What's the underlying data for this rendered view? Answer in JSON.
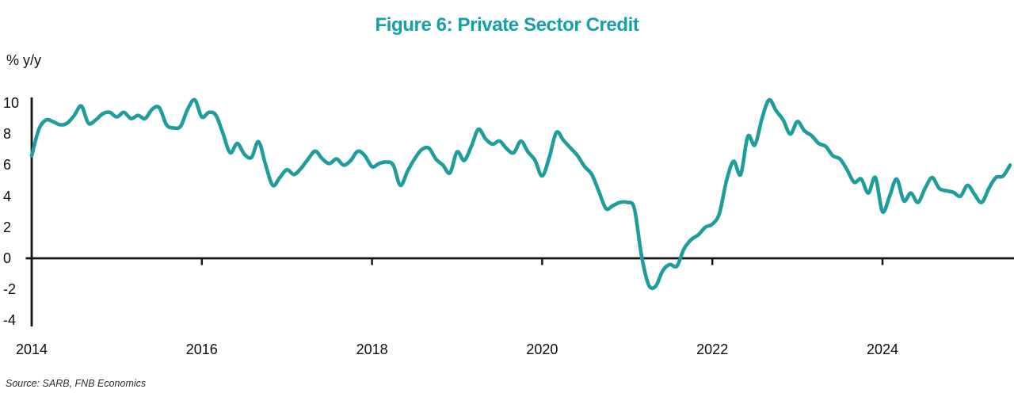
{
  "figure": {
    "title": "Figure 6: Private Sector Credit",
    "title_color": "#14a0a8",
    "unit_label": "% y/y",
    "source": "Source: SARB, FNB Economics"
  },
  "chart_data": {
    "type": "line",
    "title": "Figure 6: Private Sector Credit",
    "ylabel": "% y/y",
    "series_name": "private-sector-credit-growth",
    "frequency": "monthly",
    "start_year": 2014,
    "start_month": 1,
    "values": [
      6.6,
      8.3,
      8.9,
      8.8,
      8.6,
      8.7,
      9.2,
      9.8,
      8.7,
      8.9,
      9.3,
      9.4,
      9.1,
      9.4,
      9.0,
      9.2,
      9.0,
      9.6,
      9.7,
      8.6,
      8.4,
      8.5,
      9.6,
      10.2,
      9.1,
      9.4,
      9.2,
      8.0,
      6.8,
      7.4,
      6.7,
      6.5,
      7.5,
      6.0,
      4.7,
      5.2,
      5.7,
      5.4,
      5.8,
      6.4,
      6.9,
      6.4,
      6.1,
      6.4,
      6.0,
      6.3,
      6.9,
      6.6,
      5.9,
      6.1,
      6.2,
      6.0,
      4.7,
      5.6,
      6.4,
      7.0,
      7.1,
      6.4,
      6.0,
      5.5,
      6.85,
      6.3,
      7.2,
      8.3,
      7.7,
      7.35,
      7.55,
      7.05,
      6.8,
      7.55,
      6.85,
      6.3,
      5.3,
      6.5,
      8.1,
      7.6,
      7.1,
      6.6,
      5.9,
      5.4,
      4.3,
      3.2,
      3.4,
      3.6,
      3.6,
      3.2,
      0.2,
      -1.7,
      -1.8,
      -0.8,
      -0.4,
      -0.5,
      0.6,
      1.2,
      1.5,
      2.0,
      2.2,
      2.9,
      5.0,
      6.25,
      5.4,
      7.85,
      7.3,
      9.0,
      10.2,
      9.5,
      8.9,
      8.0,
      8.8,
      8.2,
      7.9,
      7.4,
      7.2,
      6.6,
      6.4,
      5.7,
      4.9,
      5.1,
      4.2,
      5.2,
      3.0,
      4.0,
      5.1,
      3.7,
      4.2,
      3.6,
      4.5,
      5.2,
      4.5,
      4.35,
      4.25,
      4.0,
      4.7,
      4.1,
      3.6,
      4.5,
      5.2,
      5.3,
      6.0
    ],
    "y_ticks": [
      10,
      8,
      6,
      4,
      2,
      0,
      -2,
      -4
    ],
    "x_ticks": [
      2014,
      2016,
      2018,
      2020,
      2022,
      2024
    ],
    "ylim": [
      -4.4,
      10.4
    ],
    "xlim": [
      2014.0,
      2025.6
    ],
    "grid": false,
    "legend_position": "none",
    "line_color": "#1f9c9c",
    "axis_color": "#151515"
  }
}
